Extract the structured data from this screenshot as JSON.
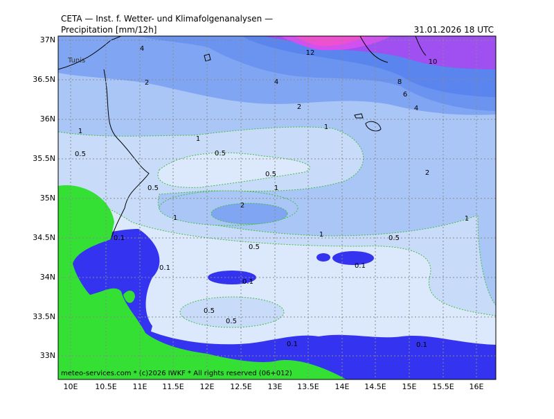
{
  "header": {
    "line": "CETA — Inst. f. Wetter- und Klimafolgenanalysen —",
    "title": "Precipitation [mm/12h]",
    "date": "31.01.2026 18 UTC"
  },
  "footer": "meteo-services.com * (c)2026 IWKF * All rights reserved (06+012)",
  "map": {
    "place": "Tunis",
    "lat_labels": [
      "37N",
      "36.5N",
      "36N",
      "35.5N",
      "35N",
      "34.5N",
      "34N",
      "33.5N",
      "33N"
    ],
    "lon_labels": [
      "10E",
      "10.5E",
      "11E",
      "11.5E",
      "12E",
      "12.5E",
      "13E",
      "13.5E",
      "14E",
      "14.5E",
      "15E",
      "15.5E",
      "16E"
    ],
    "contour_labels": [
      "4",
      "12",
      "10",
      "2",
      "4",
      "8",
      "6",
      "2",
      "4",
      "1",
      "1",
      "1",
      "0.5",
      "0.5",
      "0.5",
      "2",
      "0.5",
      "1",
      "2",
      "1",
      "1",
      "1",
      "0.1",
      "0.5",
      "0.5",
      "0.1",
      "0.1",
      "0.1",
      "0.5",
      "0.5",
      "0.1",
      "0.1"
    ]
  }
}
